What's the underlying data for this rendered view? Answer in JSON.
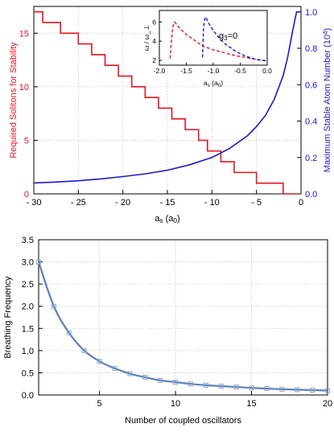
{
  "chart_data": [
    {
      "type": "line",
      "title": "",
      "xlabel": "a_s (a_0)",
      "ylabel_left": "Required Solitons for Stability",
      "ylabel_right": "Maximum Stable Atom Number (10^4)",
      "xlim": [
        -30,
        0
      ],
      "ylim_left": [
        0,
        17.5
      ],
      "ylim_right": [
        0,
        1.03
      ],
      "x_ticks": [
        -30,
        -25,
        -20,
        -15,
        -10,
        -5,
        0
      ],
      "x_tick_labels": [
        "- 30",
        "- 25",
        "- 20",
        "- 15",
        "- 10",
        "- 5",
        "0"
      ],
      "y_left_ticks": [
        0,
        5,
        10,
        15
      ],
      "y_right_ticks": [
        0.0,
        0.2,
        0.4,
        0.6,
        0.8,
        1.0
      ],
      "y_right_tick_labels": [
        "0.0",
        "0.2",
        "0.4",
        "0.6",
        "0.8",
        "1.0"
      ],
      "grid": true,
      "series": [
        {
          "name": "",
          "axis": "left",
          "color": "#e8141e",
          "step": true,
          "x": [
            -30,
            -29,
            -27,
            -25,
            -23.5,
            -22,
            -20.5,
            -19,
            -17.5,
            -16,
            -14.5,
            -13,
            -11.5,
            -10.5,
            -9,
            -7.5,
            -6,
            -5,
            -3.8,
            -2,
            -0.5
          ],
          "values": [
            17,
            16,
            15,
            14,
            13,
            12,
            11,
            10,
            9,
            8,
            7,
            6,
            5,
            4,
            3,
            2,
            2,
            1,
            1,
            0,
            0
          ]
        },
        {
          "name": "",
          "axis": "right",
          "color": "#1a1acd",
          "x": [
            -30,
            -27.5,
            -25,
            -22.5,
            -20,
            -17.5,
            -15,
            -12.5,
            -10,
            -8,
            -6,
            -5,
            -4,
            -3,
            -2,
            -1.5,
            -1,
            -0.5,
            0
          ],
          "values": [
            0.06,
            0.065,
            0.072,
            0.082,
            0.095,
            0.11,
            0.13,
            0.16,
            0.2,
            0.25,
            0.32,
            0.37,
            0.43,
            0.52,
            0.65,
            0.75,
            0.88,
            1.0,
            1.0
          ]
        }
      ],
      "inset": {
        "xlabel": "a_s (a_0)",
        "ylabel": "ω / ω_⊥",
        "annotation": "g_3=0",
        "xlim": [
          -2.0,
          0.0
        ],
        "ylim": [
          1.5,
          7.2
        ],
        "x_ticks": [
          -2.0,
          -1.5,
          -1.0,
          -0.5,
          0.0
        ],
        "x_tick_labels": [
          "-2.0",
          "-1.5",
          "-1.0",
          "-0.5",
          "0.0"
        ],
        "y_ticks": [
          2,
          4,
          6
        ],
        "y_tick_labels": [
          "2",
          "4",
          "6"
        ],
        "series": [
          {
            "name": "",
            "color": "#e8141e",
            "dashed": true,
            "x": [
              -1.8,
              -1.78,
              -1.75,
              -1.72,
              -1.7,
              -1.6,
              -1.5,
              -1.4,
              -1.3,
              -1.2,
              -1.1,
              -1.0,
              -0.8,
              -0.6,
              -0.4,
              -0.2,
              0.0
            ],
            "values": [
              2.2,
              3.8,
              5.5,
              6.0,
              5.9,
              5.2,
              4.7,
              4.3,
              3.9,
              3.5,
              3.3,
              3.1,
              2.8,
              2.5,
              2.3,
              2.1,
              1.95
            ]
          },
          {
            "name": "",
            "color": "#1a1acd",
            "dashed": true,
            "x": [
              -1.2,
              -1.18,
              -1.15,
              -1.12,
              -1.1,
              -1.0,
              -0.9,
              -0.8,
              -0.7,
              -0.6,
              -0.5,
              -0.4,
              -0.3,
              -0.2,
              -0.1,
              0.0
            ],
            "values": [
              2.3,
              5.5,
              6.5,
              6.3,
              6.0,
              5.1,
              4.4,
              3.8,
              3.4,
              3.0,
              2.7,
              2.45,
              2.25,
              2.1,
              2.0,
              1.95
            ]
          }
        ]
      }
    },
    {
      "type": "line",
      "title": "",
      "xlabel": "Number of coupled oscillators",
      "ylabel": "Breathing Frequency",
      "xlim": [
        1,
        20
      ],
      "ylim": [
        0,
        3.5
      ],
      "x_ticks": [
        5,
        10,
        15,
        20
      ],
      "x_tick_labels": [
        "5",
        "10",
        "15",
        "20"
      ],
      "y_ticks": [
        0.0,
        0.5,
        1.0,
        1.5,
        2.0,
        2.5,
        3.0,
        3.5
      ],
      "y_tick_labels": [
        "0.0",
        "0.5",
        "1.0",
        "1.5",
        "2.0",
        "2.5",
        "3.0",
        "3.5"
      ],
      "grid": true,
      "series": [
        {
          "name": "",
          "color": "#5b7fb8",
          "markers": "square",
          "x": [
            1,
            2,
            3,
            4,
            5,
            6,
            7,
            8,
            9,
            10,
            11,
            12,
            13,
            14,
            15,
            16,
            17,
            18,
            19,
            20
          ],
          "values": [
            3.0,
            2.0,
            1.4,
            1.0,
            0.76,
            0.6,
            0.48,
            0.4,
            0.33,
            0.29,
            0.25,
            0.22,
            0.2,
            0.18,
            0.16,
            0.145,
            0.13,
            0.12,
            0.11,
            0.1
          ]
        }
      ]
    }
  ]
}
